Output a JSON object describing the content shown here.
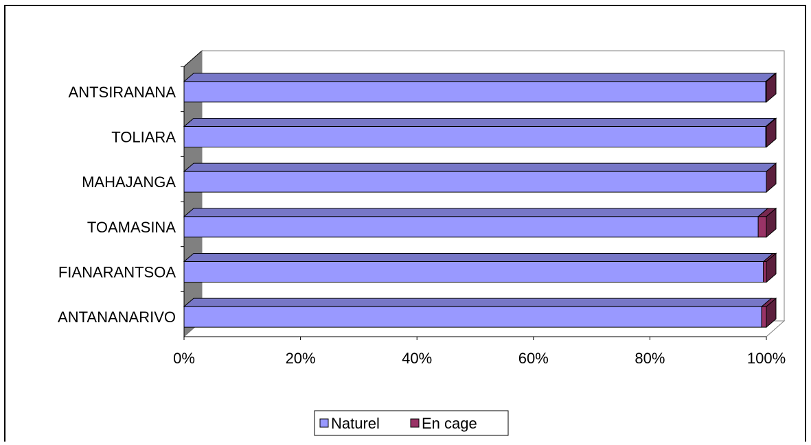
{
  "chart_data": {
    "type": "bar",
    "orientation": "horizontal",
    "stacked": "100-percent",
    "style": "3d",
    "categories": [
      "ANTSIRANANA",
      "TOLIARA",
      "MAHAJANGA",
      "TOAMASINA",
      "FIANARANTSOA",
      "ANTANANARIVO"
    ],
    "series": [
      {
        "name": "Naturel",
        "color": "#9999ff",
        "values": [
          99.9,
          99.9,
          100,
          98.6,
          99.5,
          99.2
        ]
      },
      {
        "name": "En cage",
        "color": "#993366",
        "values": [
          0.1,
          0.1,
          0,
          1.4,
          0.5,
          0.8
        ]
      }
    ],
    "xlim": [
      0,
      100
    ],
    "xticks": [
      "0%",
      "20%",
      "40%",
      "60%",
      "80%",
      "100%"
    ],
    "grid": false,
    "legend_position": "bottom",
    "wall_color": "#808080"
  }
}
